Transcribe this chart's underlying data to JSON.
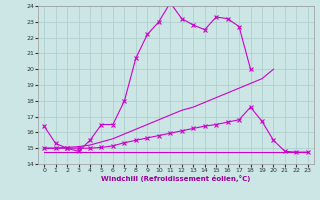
{
  "background_color": "#cce6e6",
  "grid_color": "#aacccc",
  "line_color": "#cc00cc",
  "xlim": [
    -0.5,
    23.5
  ],
  "ylim": [
    14,
    24
  ],
  "xlabel": "Windchill (Refroidissement éolien,°C)",
  "xticks": [
    0,
    1,
    2,
    3,
    4,
    5,
    6,
    7,
    8,
    9,
    10,
    11,
    12,
    13,
    14,
    15,
    16,
    17,
    18,
    19,
    20,
    21,
    22,
    23
  ],
  "yticks": [
    14,
    15,
    16,
    17,
    18,
    19,
    20,
    21,
    22,
    23,
    24
  ],
  "series1_x": [
    0,
    1,
    2,
    3,
    4,
    5,
    6,
    7,
    8,
    9,
    10,
    11,
    12,
    13,
    14,
    15,
    16,
    17,
    18
  ],
  "series1_y": [
    16.4,
    15.3,
    15.0,
    14.8,
    15.5,
    16.5,
    16.5,
    18.0,
    20.7,
    22.2,
    23.0,
    24.2,
    23.2,
    22.8,
    22.5,
    23.3,
    23.2,
    22.7,
    20.0
  ],
  "series2_x": [
    0,
    1,
    2,
    3,
    4,
    5,
    6,
    7,
    8,
    9,
    10,
    11,
    12,
    13,
    14,
    15,
    16,
    17,
    18,
    19,
    20
  ],
  "series2_y": [
    15.0,
    15.0,
    15.05,
    15.1,
    15.2,
    15.4,
    15.6,
    15.9,
    16.2,
    16.5,
    16.8,
    17.1,
    17.4,
    17.6,
    17.9,
    18.2,
    18.5,
    18.8,
    19.1,
    19.4,
    20.0
  ],
  "series3_x": [
    0,
    1,
    2,
    3,
    4,
    5,
    6,
    7,
    8,
    9,
    10,
    11,
    12,
    13,
    14,
    15,
    16,
    17,
    18,
    19,
    20,
    21,
    22,
    23
  ],
  "series3_y": [
    15.0,
    15.0,
    15.0,
    15.0,
    15.0,
    15.05,
    15.15,
    15.35,
    15.5,
    15.65,
    15.8,
    15.95,
    16.1,
    16.25,
    16.4,
    16.5,
    16.65,
    16.8,
    17.6,
    16.7,
    15.5,
    14.8,
    14.75,
    14.75
  ],
  "series4_x": [
    0,
    1,
    2,
    3,
    4,
    5,
    6,
    7,
    8,
    9,
    10,
    11,
    12,
    13,
    14,
    15,
    16,
    17,
    18,
    19,
    20,
    21,
    22,
    23
  ],
  "series4_y": [
    14.75,
    14.75,
    14.75,
    14.75,
    14.75,
    14.75,
    14.75,
    14.75,
    14.75,
    14.75,
    14.75,
    14.75,
    14.75,
    14.75,
    14.75,
    14.75,
    14.75,
    14.75,
    14.75,
    14.75,
    14.75,
    14.75,
    14.75,
    14.75
  ],
  "tick_fontsize": 4.5,
  "xlabel_fontsize": 5.0,
  "xlabel_color": "#990099"
}
